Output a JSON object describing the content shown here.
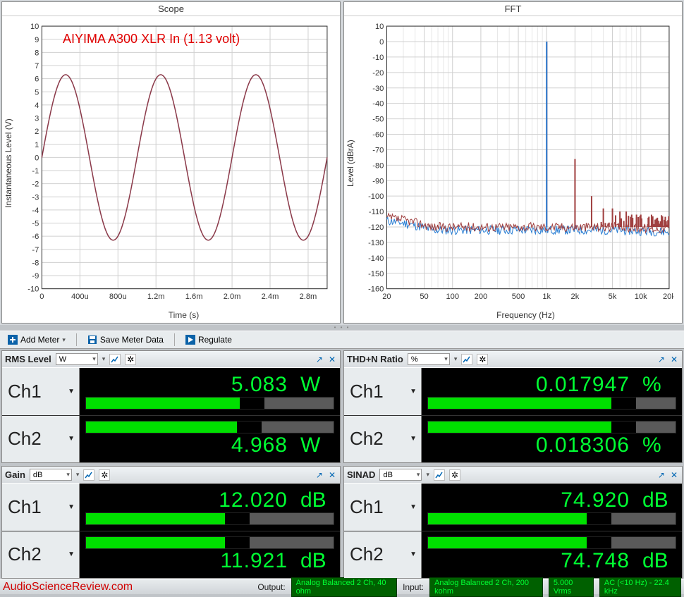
{
  "scope": {
    "title": "Scope",
    "ylabel": "Instantaneous Level (V)",
    "xlabel": "Time (s)",
    "annotation": "AIYIMA A300 XLR In (1.13 volt)",
    "xlim": [
      0,
      0.003
    ],
    "ylim": [
      -10,
      10
    ],
    "yticks": [
      -10,
      -9,
      -8,
      -7,
      -6,
      -5,
      -4,
      -3,
      -2,
      -1,
      0,
      1,
      2,
      3,
      4,
      5,
      6,
      7,
      8,
      9,
      10
    ],
    "xticks": [
      0,
      0.0004,
      0.0008,
      0.0012,
      0.0016,
      0.002,
      0.0024,
      0.0028
    ],
    "xtick_labels": [
      "0",
      "400u",
      "800u",
      "1.2m",
      "1.6m",
      "2.0m",
      "2.4m",
      "2.8m"
    ],
    "amplitude": 6.3,
    "freq_hz": 1000,
    "line_color": "#8b3a4a",
    "grid_color": "#d0d0d0",
    "annotation_color": "#e00000"
  },
  "fft": {
    "title": "FFT",
    "ylabel": "Level (dBrA)",
    "xlabel": "Frequency (Hz)",
    "xlim": [
      20,
      20000
    ],
    "ylim": [
      -160,
      10
    ],
    "yticks": [
      -160,
      -150,
      -140,
      -130,
      -120,
      -110,
      -100,
      -90,
      -80,
      -70,
      -60,
      -50,
      -40,
      -30,
      -20,
      -10,
      0,
      10
    ],
    "xticks": [
      20,
      50,
      100,
      200,
      500,
      1000,
      2000,
      5000,
      10000,
      20000
    ],
    "xtick_labels": [
      "20",
      "50",
      "100",
      "200",
      "500",
      "1k",
      "2k",
      "5k",
      "10k",
      "20k"
    ],
    "noise_floor_db": -120,
    "fundamental_hz": 1000,
    "fundamental_db": 0,
    "harmonics": [
      {
        "hz": 2000,
        "db": -76
      },
      {
        "hz": 3000,
        "db": -100
      },
      {
        "hz": 4000,
        "db": -108
      },
      {
        "hz": 5000,
        "db": -108
      },
      {
        "hz": 6000,
        "db": -110
      },
      {
        "hz": 7000,
        "db": -110
      },
      {
        "hz": 8000,
        "db": -112
      },
      {
        "hz": 9000,
        "db": -112
      },
      {
        "hz": 10000,
        "db": -112
      },
      {
        "hz": 12000,
        "db": -114
      },
      {
        "hz": 15000,
        "db": -114
      }
    ],
    "series_colors": {
      "ch1": "#2a7fd4",
      "ch2": "#a04040"
    },
    "grid_color": "#d0d0d0"
  },
  "toolbar": {
    "add_meter": "Add Meter",
    "save_meter": "Save Meter Data",
    "regulate": "Regulate"
  },
  "meters": {
    "rms": {
      "title": "RMS Level",
      "unit_sel": "W",
      "ch1": {
        "label": "Ch1",
        "value": "5.083",
        "unit": "W",
        "bar_pct": 62,
        "black_pct": 10
      },
      "ch2": {
        "label": "Ch2",
        "value": "4.968",
        "unit": "W",
        "bar_pct": 61,
        "black_pct": 10
      }
    },
    "thdn": {
      "title": "THD+N Ratio",
      "unit_sel": "%",
      "ch1": {
        "label": "Ch1",
        "value": "0.017947",
        "unit": "%",
        "bar_pct": 74,
        "black_pct": 10
      },
      "ch2": {
        "label": "Ch2",
        "value": "0.018306",
        "unit": "%",
        "bar_pct": 74,
        "black_pct": 10
      }
    },
    "gain": {
      "title": "Gain",
      "unit_sel": "dB",
      "ch1": {
        "label": "Ch1",
        "value": "12.020",
        "unit": "dB",
        "bar_pct": 56,
        "black_pct": 10
      },
      "ch2": {
        "label": "Ch2",
        "value": "11.921",
        "unit": "dB",
        "bar_pct": 56,
        "black_pct": 10
      }
    },
    "sinad": {
      "title": "SINAD",
      "unit_sel": "dB",
      "ch1": {
        "label": "Ch1",
        "value": "74.920",
        "unit": "dB",
        "bar_pct": 64,
        "black_pct": 10
      },
      "ch2": {
        "label": "Ch2",
        "value": "74.748",
        "unit": "dB",
        "bar_pct": 64,
        "black_pct": 10
      }
    }
  },
  "footer": {
    "brand": "AudioScienceReview.com",
    "output_label": "Output:",
    "output_badge": "Analog Balanced 2 Ch, 40 ohm",
    "input_label": "Input:",
    "input_badge": "Analog Balanced 2 Ch, 200 kohm",
    "vrms_badge": "5.000 Vrms",
    "bw_badge": "AC (<10 Hz) - 22.4 kHz"
  },
  "colors": {
    "value_green": "#00ff33",
    "bar_green": "#00e000",
    "panel_bg": "#e8ecee",
    "meter_bg": "#000000"
  }
}
